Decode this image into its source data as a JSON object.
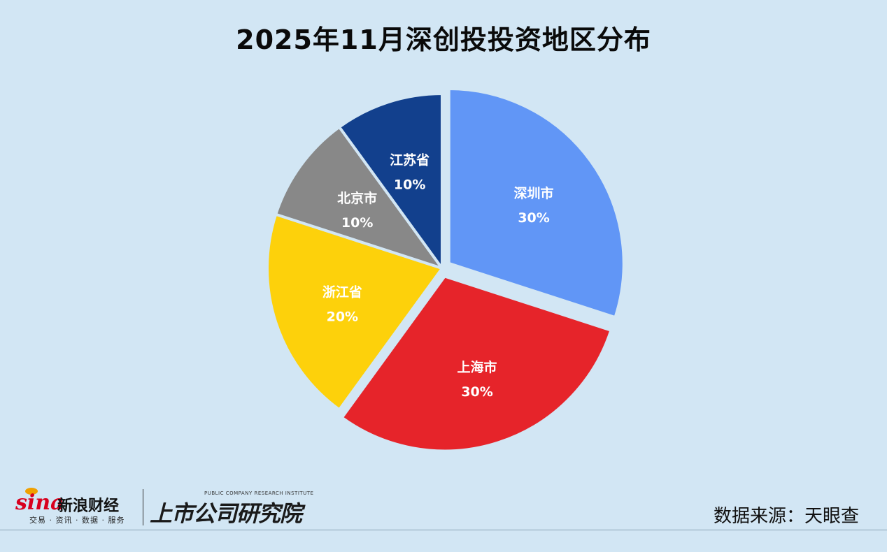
{
  "title": "2025年11月深创投投资地区分布",
  "source": "数据来源：天眼查",
  "logos": {
    "sina_word": "sina",
    "sina_cn": "新浪财经",
    "sina_sub": "交易 · 资讯 · 数据 · 服务",
    "institute_en": "PUBLIC COMPANY RESEARCH INSTITUTE",
    "institute_cn": "上市公司研究院"
  },
  "colors": {
    "background": "#d2e6f4",
    "label_text": "#ffffff"
  },
  "chart_data": {
    "type": "pie",
    "title": "2025年11月深创投投资地区分布",
    "start_angle_deg": 0,
    "direction": "clockwise",
    "exploded": [
      "深圳市",
      "上海市"
    ],
    "slices": [
      {
        "label": "深圳市",
        "value": 30,
        "value_label": "30%",
        "color": "#6196f6"
      },
      {
        "label": "上海市",
        "value": 30,
        "value_label": "30%",
        "color": "#e6242a"
      },
      {
        "label": "浙江省",
        "value": 20,
        "value_label": "20%",
        "color": "#fdd10b"
      },
      {
        "label": "北京市",
        "value": 10,
        "value_label": "10%",
        "color": "#888888"
      },
      {
        "label": "江苏省",
        "value": 10,
        "value_label": "10%",
        "color": "#12408d"
      }
    ]
  }
}
